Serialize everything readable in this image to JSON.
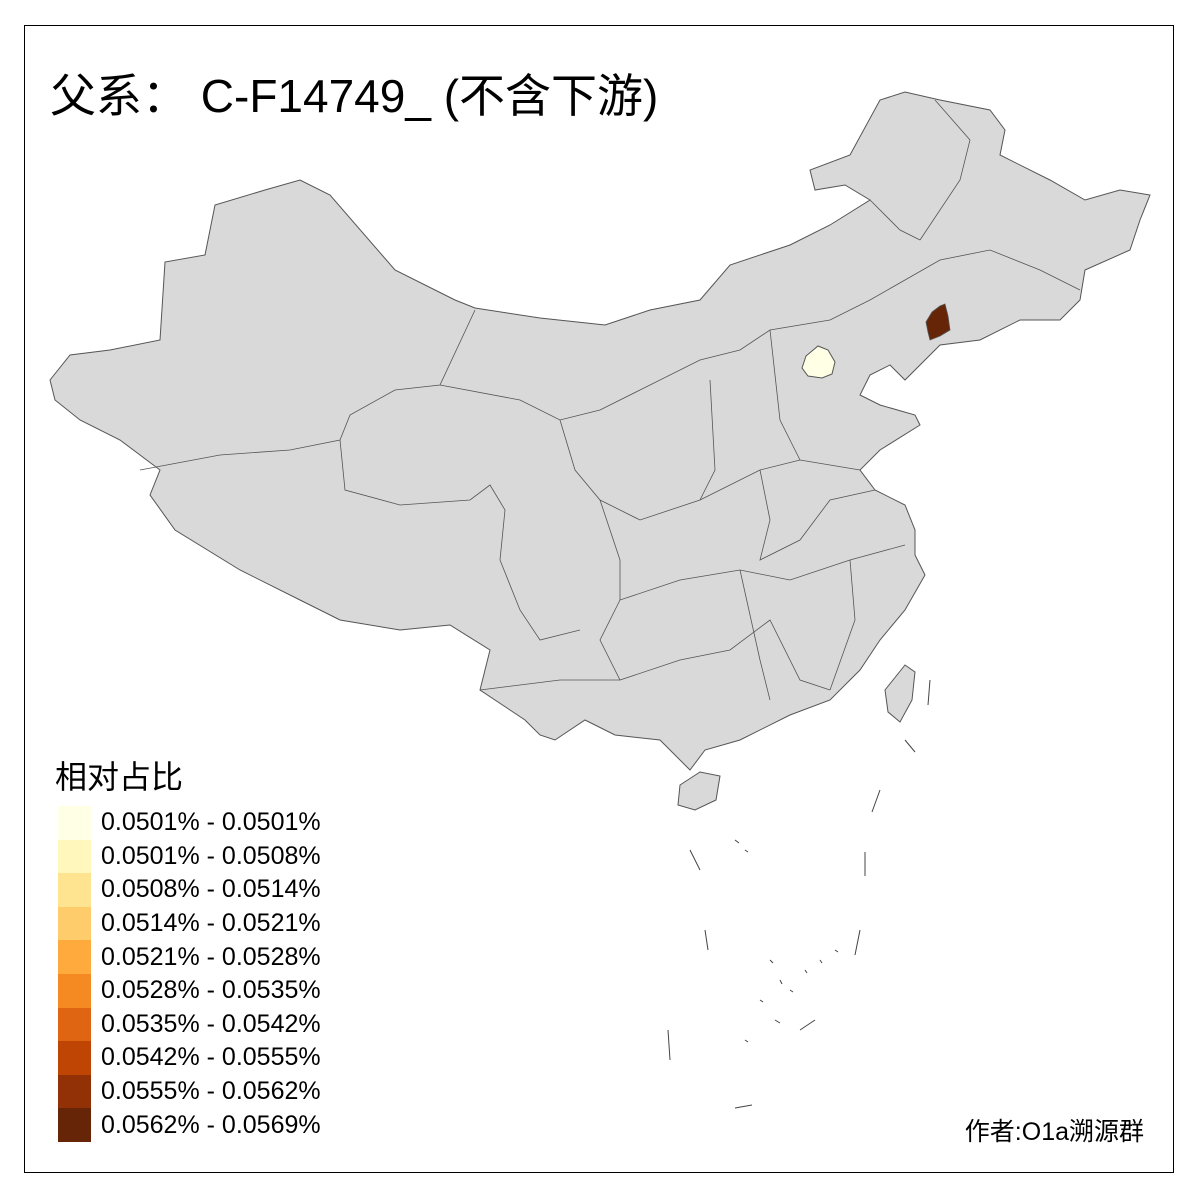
{
  "title": "父系： C-F14749_ (不含下游)",
  "legend": {
    "title": "相对占比",
    "items": [
      {
        "label": "0.0501% - 0.0501%",
        "color": "#FFFFE5"
      },
      {
        "label": "0.0501% - 0.0508%",
        "color": "#FFF7BC"
      },
      {
        "label": "0.0508% - 0.0514%",
        "color": "#FEE391"
      },
      {
        "label": "0.0514% - 0.0521%",
        "color": "#FECC6A"
      },
      {
        "label": "0.0521% - 0.0528%",
        "color": "#FEAA3C"
      },
      {
        "label": "0.0528% - 0.0535%",
        "color": "#F58A22"
      },
      {
        "label": "0.0535% - 0.0542%",
        "color": "#E06512"
      },
      {
        "label": "0.0542% - 0.0555%",
        "color": "#BF4505"
      },
      {
        "label": "0.0555% - 0.0562%",
        "color": "#923105"
      },
      {
        "label": "0.0562% - 0.0569%",
        "color": "#662506"
      }
    ]
  },
  "map": {
    "base_color": "#D9D9D9",
    "border_color": "#555555",
    "highlighted": [
      {
        "legend_class": 0,
        "color": "#FFFFE5"
      },
      {
        "legend_class": 9,
        "color": "#662506"
      }
    ]
  },
  "credit": "作者:O1a溯源群"
}
